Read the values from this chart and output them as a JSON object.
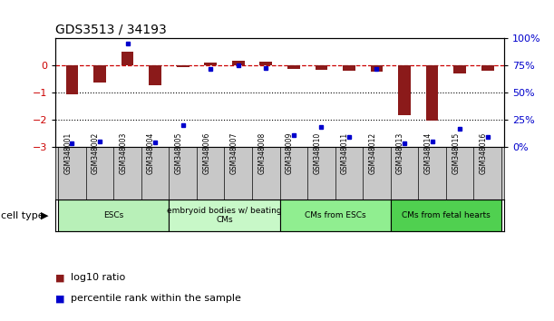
{
  "title": "GDS3513 / 34193",
  "samples": [
    "GSM348001",
    "GSM348002",
    "GSM348003",
    "GSM348004",
    "GSM348005",
    "GSM348006",
    "GSM348007",
    "GSM348008",
    "GSM348009",
    "GSM348010",
    "GSM348011",
    "GSM348012",
    "GSM348013",
    "GSM348014",
    "GSM348015",
    "GSM348016"
  ],
  "log10_ratio": [
    -1.05,
    -0.62,
    0.52,
    -0.72,
    -0.06,
    0.1,
    0.18,
    0.15,
    -0.12,
    -0.17,
    -0.2,
    -0.22,
    -1.82,
    -2.02,
    -0.28,
    -0.2
  ],
  "percentile_rank": [
    3,
    5,
    95,
    4,
    20,
    72,
    75,
    73,
    11,
    18,
    9,
    72,
    3,
    5,
    17,
    9
  ],
  "cell_type_groups": [
    {
      "label": "ESCs",
      "start": 0,
      "end": 3,
      "color": "#b8f0b8"
    },
    {
      "label": "embryoid bodies w/ beating\nCMs",
      "start": 4,
      "end": 7,
      "color": "#c8f8c8"
    },
    {
      "label": "CMs from ESCs",
      "start": 8,
      "end": 11,
      "color": "#90EE90"
    },
    {
      "label": "CMs from fetal hearts",
      "start": 12,
      "end": 15,
      "color": "#50d050"
    }
  ],
  "ylim_left": [
    -3.0,
    1.0
  ],
  "ylim_right": [
    0,
    100
  ],
  "bar_color": "#8B1A1A",
  "dot_color": "#0000CC",
  "ref_line_color": "#CC0000",
  "grid_line_color": "#000000",
  "bg_color": "#FFFFFF",
  "label_bg_color": "#C8C8C8",
  "yticks_left": [
    -3,
    -2,
    -1,
    0
  ],
  "yticks_right": [
    0,
    25,
    50,
    75,
    100
  ],
  "ytick_labels_right": [
    "0%",
    "25%",
    "50%",
    "75%",
    "100%"
  ]
}
